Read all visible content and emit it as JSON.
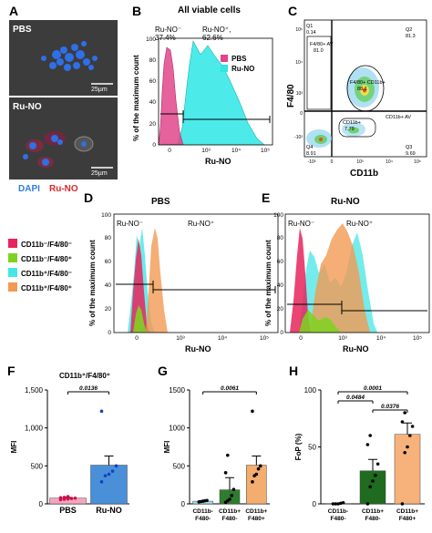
{
  "panel_letters": [
    "A",
    "B",
    "C",
    "D",
    "E",
    "F",
    "G",
    "H"
  ],
  "panel_a": {
    "top_label": "PBS",
    "bottom_label": "Ru-NO",
    "scale_top": "25µm",
    "scale_bottom": "25µm",
    "stain_dapi": "DAPI",
    "stain_runo": "Ru-NO",
    "colors": {
      "dapi": "#2f7ee0",
      "runo": "#d62a2a",
      "bg": "#3a3a3a"
    }
  },
  "panel_b": {
    "title": "All viable cells",
    "ylabel": "% of the maximum count",
    "xlabel": "Ru-NO",
    "gate_neg_label": "Ru-NO⁻",
    "gate_pos_label": "Ru-NO⁺,",
    "gate_neg_pct": "37.4%",
    "gate_pos_pct": "62.6%",
    "yticks": [
      "0",
      "20",
      "40",
      "60",
      "80",
      "100"
    ],
    "xticks": [
      "0",
      "10³",
      "10⁴",
      "10⁵"
    ],
    "legend": [
      "PBS",
      "Ru-NO"
    ],
    "colors": {
      "pbs": "#e0468b",
      "runo": "#2ee6e6"
    }
  },
  "panel_c": {
    "ylabel": "F4/80",
    "xlabel": "CD11b",
    "yticks": [
      "10⁵",
      "10⁴",
      "10³",
      "0",
      "-10³"
    ],
    "xticks": [
      "-10³",
      "0",
      "10³",
      "10⁴",
      "10⁵"
    ],
    "q1": {
      "name": "Q1",
      "value": "0.14"
    },
    "q2": {
      "name": "Q2",
      "value": "81.3"
    },
    "q3": {
      "name": "Q3",
      "value": "9.69"
    },
    "q4": {
      "name": "Q4",
      "value": "8.91"
    },
    "gate_f480_neg": {
      "label": "F4/80+ AV",
      "value": "81.0"
    },
    "gate_double": {
      "label": "F4/80+ CD11b+",
      "value": "88.1"
    },
    "gate_cd11b": {
      "label": "CD11b+",
      "value": "7.79"
    },
    "gate_q3_label": "CD11b+ AV"
  },
  "panel_d": {
    "title": "PBS",
    "ylabel": "% of the maximum count",
    "xlabel": "Ru-NO",
    "gate_neg_label": "Ru-NO⁻",
    "gate_pos_label": "Ru-NO⁺",
    "yticks": [
      "0",
      "20",
      "40",
      "60",
      "80",
      "100"
    ],
    "xticks": [
      "0",
      "10³",
      "10⁴",
      "10⁵"
    ]
  },
  "panel_e": {
    "title": "Ru-NO",
    "ylabel": "% of the maximum count",
    "xlabel": "Ru-NO",
    "gate_neg_label": "Ru-NO⁻",
    "gate_pos_label": "Ru-NO⁺",
    "yticks": [
      "0",
      "20",
      "40",
      "60",
      "80",
      "100"
    ],
    "xticks": [
      "0",
      "10³",
      "10⁴",
      "10⁵"
    ]
  },
  "population_legend": {
    "items": [
      {
        "label": "CD11b⁻/F4/80⁻",
        "color": "#e8245c"
      },
      {
        "label": "CD11b⁻/F4/80⁺",
        "color": "#7ed321"
      },
      {
        "label": "CD11b⁺/F4/80⁻",
        "color": "#46e6e6"
      },
      {
        "label": "CD11b⁺/F4/80⁺",
        "color": "#f29a52"
      }
    ]
  },
  "chart_data": [
    {
      "type": "bar",
      "panel": "F",
      "title": "CD11b⁺/F4/80⁺",
      "ylabel": "MFI",
      "xlabel": "",
      "categories": [
        "PBS",
        "Ru-NO"
      ],
      "values": [
        75,
        510
      ],
      "errors": [
        10,
        120
      ],
      "points": [
        [
          55,
          60,
          65,
          70,
          75,
          80,
          85,
          95
        ],
        [
          290,
          370,
          390,
          430,
          500,
          1220
        ]
      ],
      "colors": [
        "#f4a6c0",
        "#4a90d9"
      ],
      "ylim": [
        0,
        1500
      ],
      "yticks": [
        "0",
        "500",
        "1,000",
        "1,500"
      ],
      "annotations": [
        {
          "from": "PBS",
          "to": "Ru-NO",
          "text": "0.0136"
        }
      ]
    },
    {
      "type": "bar",
      "panel": "G",
      "title": "",
      "ylabel": "MFI",
      "xlabel": "",
      "categories": [
        "CD11b-\nF480-",
        "CD11b+\nF480-",
        "CD11b+\nF480+"
      ],
      "values": [
        35,
        185,
        510
      ],
      "errors": [
        5,
        160,
        120
      ],
      "points": [
        [
          25,
          30,
          35,
          40,
          45
        ],
        [
          20,
          40,
          60,
          110,
          190,
          410,
          640
        ],
        [
          290,
          370,
          390,
          460,
          500,
          1220
        ]
      ],
      "colors": [
        "#9fe0f0",
        "#2e7d2e",
        "#f3ad6f"
      ],
      "ylim": [
        0,
        1500
      ],
      "yticks": [
        "0",
        "500",
        "1000",
        "1500"
      ],
      "annotations": [
        {
          "from": "CD11b-\nF480-",
          "to": "CD11b+\nF480+",
          "text": "0.0061"
        }
      ]
    },
    {
      "type": "bar",
      "panel": "H",
      "title": "",
      "ylabel": "FoP (%)",
      "xlabel": "",
      "categories": [
        "CD11b-\nF480-",
        "CD11b+\nF480-",
        "CD11b+\nF480+"
      ],
      "values": [
        0.3,
        29,
        61
      ],
      "errors": [
        0.2,
        10,
        10
      ],
      "points": [
        [
          0,
          0,
          0,
          0.5,
          1
        ],
        [
          0,
          15,
          20,
          25,
          35,
          52,
          60
        ],
        [
          0,
          45,
          50,
          60,
          68,
          72,
          80
        ]
      ],
      "colors": [
        "#cfcfcf",
        "#1f6b1f",
        "#f6b27a"
      ],
      "ylim": [
        0,
        100
      ],
      "yticks": [
        "0",
        "50",
        "100"
      ],
      "annotations": [
        {
          "from": "CD11b-\nF480-",
          "to": "CD11b+\nF480+",
          "text": "0.0001"
        },
        {
          "from": "CD11b-\nF480-",
          "to": "CD11b+\nF480-",
          "text": "0.0484"
        },
        {
          "from": "CD11b+\nF480-",
          "to": "CD11b+\nF480+",
          "text": "0.0376"
        }
      ]
    }
  ]
}
